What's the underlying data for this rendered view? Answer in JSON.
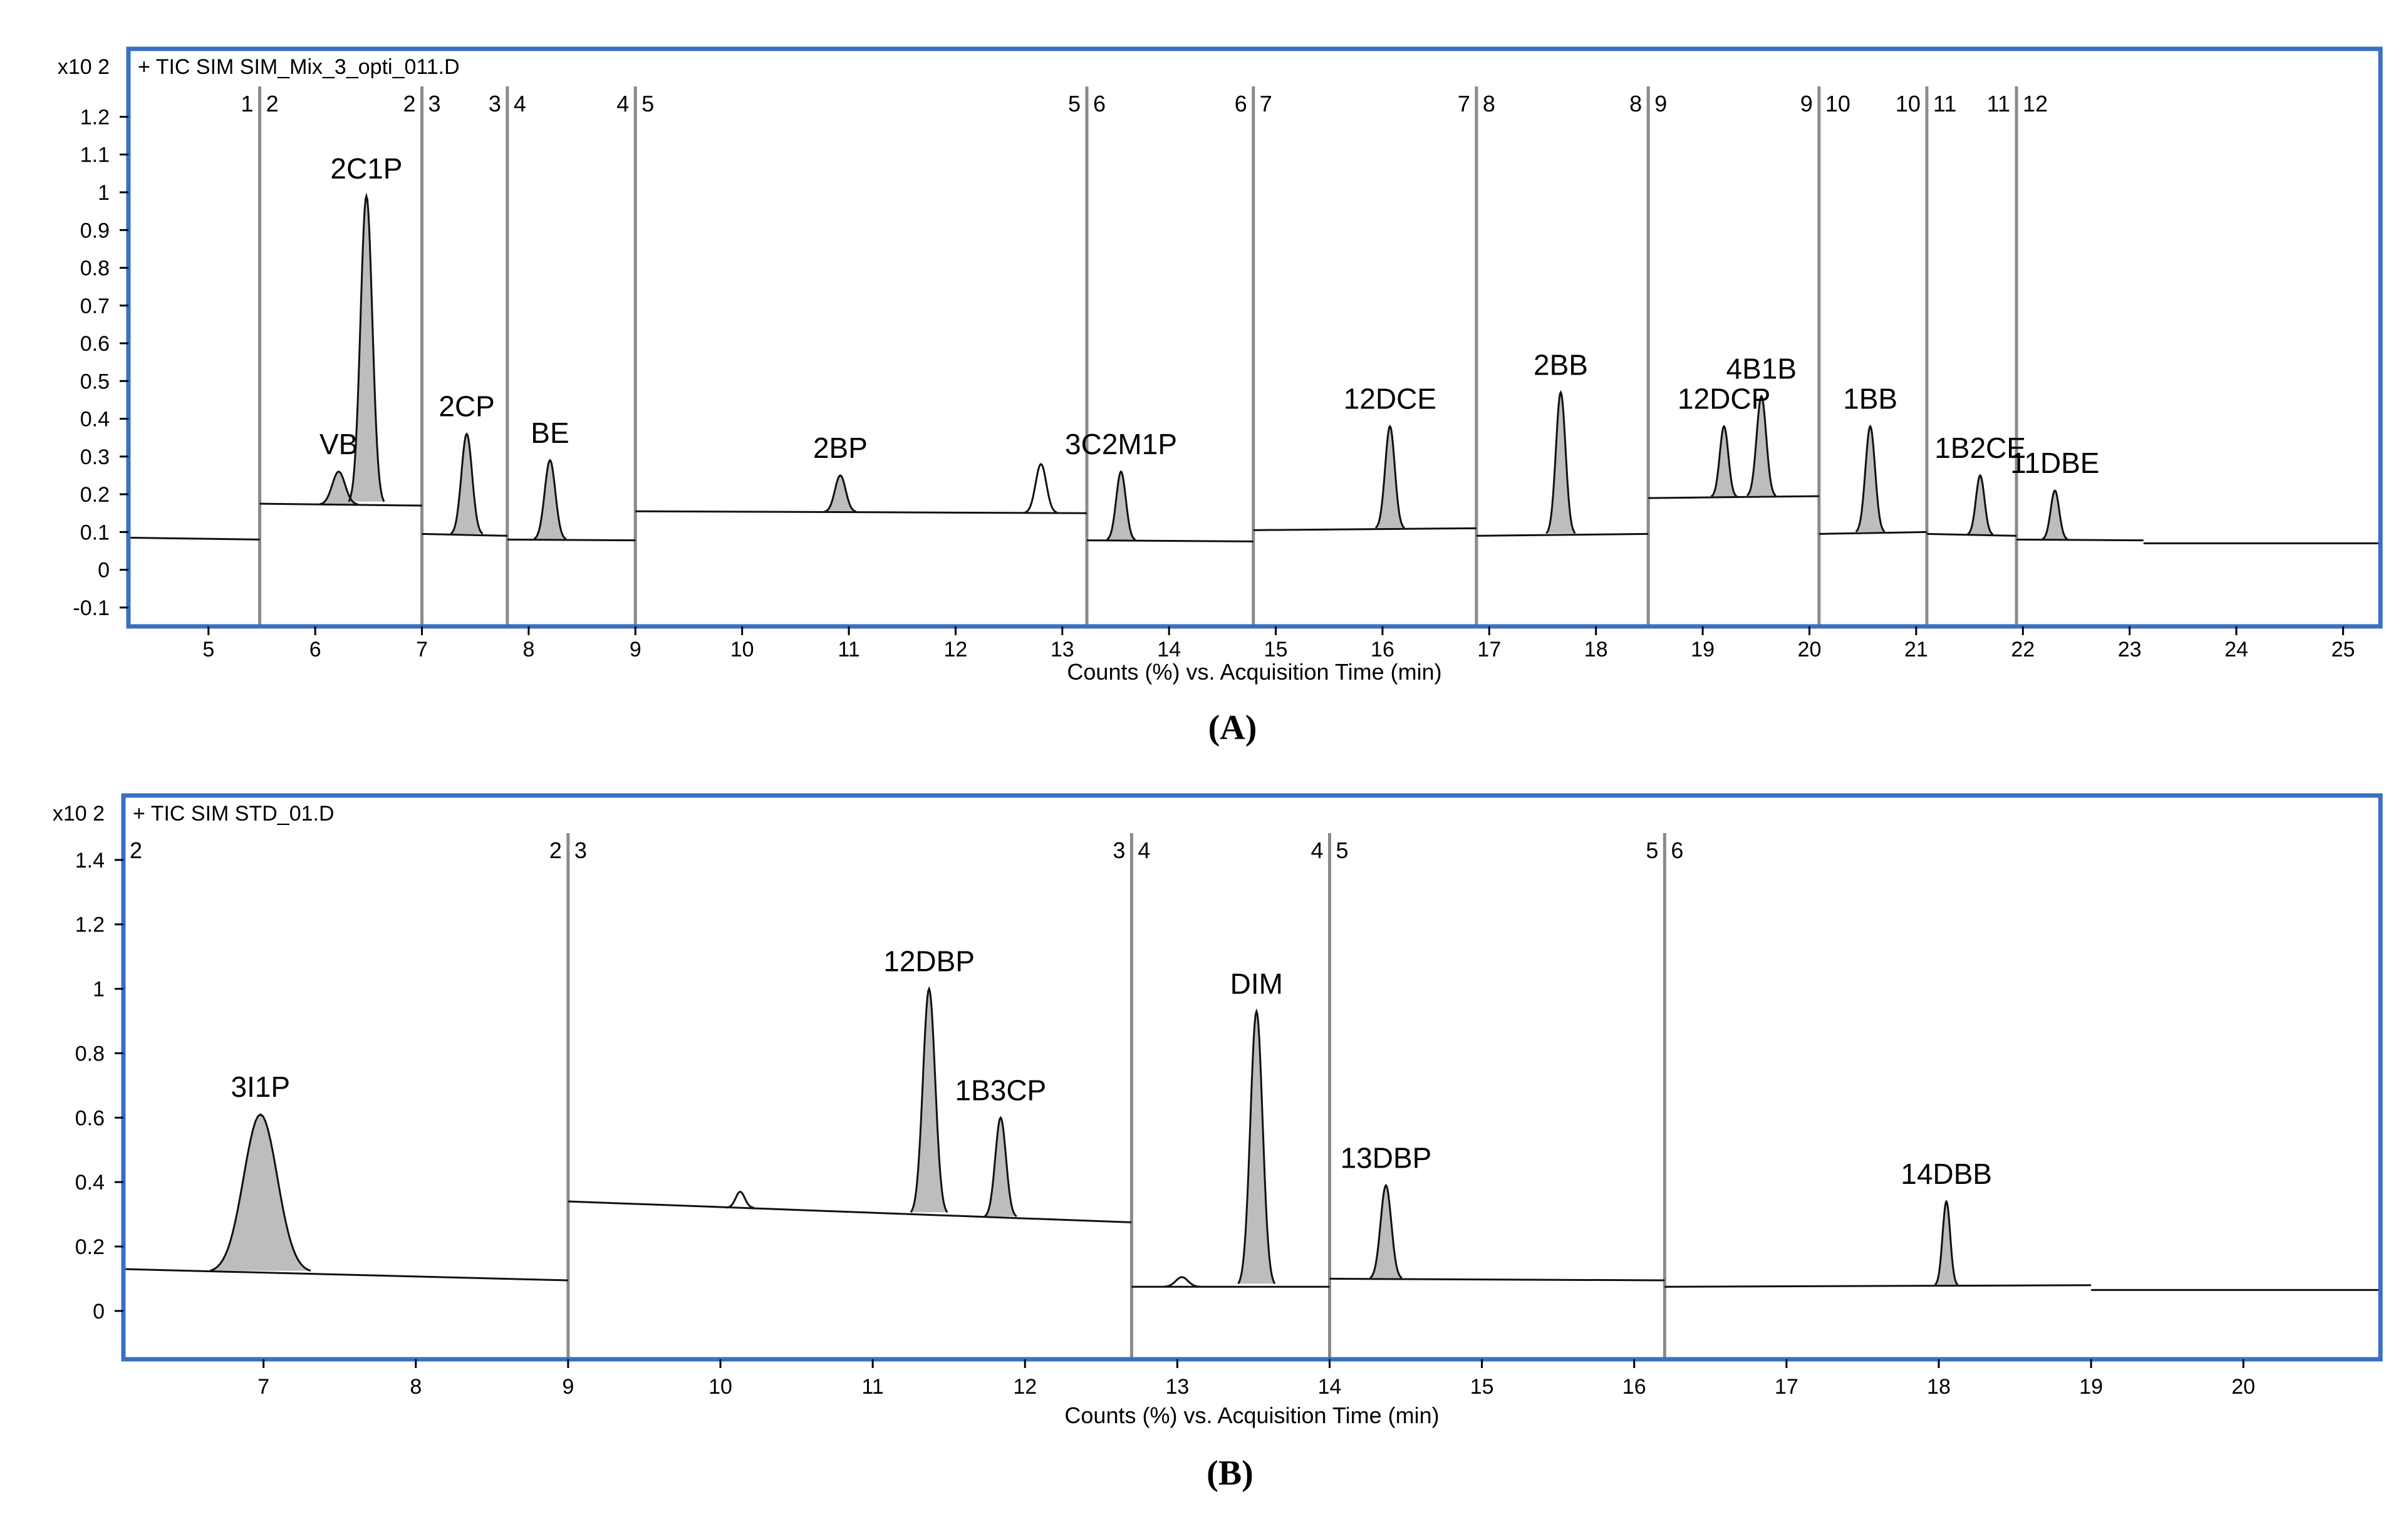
{
  "chart_data": [
    {
      "type": "line",
      "title": "+ TIC SIM SIM_Mix_3_opti_011.D",
      "panel_caption": "(A)",
      "xlabel": "Counts (%) vs. Acquisition Time (min)",
      "ylabel": "x10 2",
      "ylim": [
        -0.15,
        1.38
      ],
      "xlim": [
        4.25,
        25.35
      ],
      "x_ticks": [
        "5",
        "6",
        "7",
        "8",
        "9",
        "10",
        "11",
        "12",
        "13",
        "14",
        "15",
        "16",
        "17",
        "18",
        "19",
        "20",
        "21",
        "22",
        "23",
        "24",
        "25"
      ],
      "y_ticks": [
        "-0.1",
        "0",
        "0.1",
        "0.2",
        "0.3",
        "0.4",
        "0.5",
        "0.6",
        "0.7",
        "0.8",
        "0.9",
        "1",
        "1.1",
        "1.2"
      ],
      "grid": false,
      "segment_boundaries": [
        {
          "x": 5.48,
          "left": "1",
          "right": "2"
        },
        {
          "x": 7.0,
          "left": "2",
          "right": "3"
        },
        {
          "x": 7.8,
          "left": "3",
          "right": "4"
        },
        {
          "x": 9.0,
          "left": "4",
          "right": "5"
        },
        {
          "x": 13.23,
          "left": "5",
          "right": "6"
        },
        {
          "x": 14.79,
          "left": "6",
          "right": "7"
        },
        {
          "x": 16.88,
          "left": "7",
          "right": "8"
        },
        {
          "x": 18.49,
          "left": "8",
          "right": "9"
        },
        {
          "x": 20.09,
          "left": "9",
          "right": "10"
        },
        {
          "x": 21.1,
          "left": "10",
          "right": "11"
        },
        {
          "x": 21.94,
          "left": "11",
          "right": "12"
        }
      ],
      "baselines": [
        {
          "x0": 4.25,
          "x1": 5.48,
          "y0": 0.085,
          "y1": 0.08
        },
        {
          "x0": 5.48,
          "x1": 7.0,
          "y0": 0.175,
          "y1": 0.17
        },
        {
          "x0": 7.0,
          "x1": 7.8,
          "y0": 0.095,
          "y1": 0.09
        },
        {
          "x0": 7.8,
          "x1": 9.0,
          "y0": 0.08,
          "y1": 0.078
        },
        {
          "x0": 9.0,
          "x1": 13.23,
          "y0": 0.155,
          "y1": 0.15
        },
        {
          "x0": 13.23,
          "x1": 14.79,
          "y0": 0.078,
          "y1": 0.075
        },
        {
          "x0": 14.79,
          "x1": 16.88,
          "y0": 0.105,
          "y1": 0.11
        },
        {
          "x0": 16.88,
          "x1": 18.49,
          "y0": 0.09,
          "y1": 0.095
        },
        {
          "x0": 18.49,
          "x1": 20.09,
          "y0": 0.19,
          "y1": 0.195
        },
        {
          "x0": 20.09,
          "x1": 21.1,
          "y0": 0.095,
          "y1": 0.1
        },
        {
          "x0": 21.1,
          "x1": 21.94,
          "y0": 0.095,
          "y1": 0.09
        },
        {
          "x0": 21.94,
          "x1": 23.13,
          "y0": 0.08,
          "y1": 0.078
        },
        {
          "x0": 23.13,
          "x1": 25.35,
          "y0": 0.07,
          "y1": 0.07
        }
      ],
      "peaks": [
        {
          "label": "VB",
          "x": 6.22,
          "height": 0.26,
          "width": 0.06,
          "filled": true
        },
        {
          "label": "2C1P",
          "x": 6.48,
          "height": 0.99,
          "width": 0.055,
          "filled": true
        },
        {
          "label": "2CP",
          "x": 7.42,
          "height": 0.36,
          "width": 0.05,
          "filled": true
        },
        {
          "label": "BE",
          "x": 8.2,
          "height": 0.29,
          "width": 0.05,
          "filled": true
        },
        {
          "label": "2BP",
          "x": 10.92,
          "height": 0.25,
          "width": 0.05,
          "filled": true
        },
        {
          "label": "",
          "x": 12.8,
          "height": 0.28,
          "width": 0.05,
          "filled": false
        },
        {
          "label": "3C2M1P",
          "x": 13.55,
          "height": 0.26,
          "width": 0.045,
          "filled": true
        },
        {
          "label": "12DCE",
          "x": 16.07,
          "height": 0.38,
          "width": 0.045,
          "filled": true
        },
        {
          "label": "2BB",
          "x": 17.67,
          "height": 0.47,
          "width": 0.045,
          "filled": true
        },
        {
          "label": "12DCP",
          "x": 19.2,
          "height": 0.38,
          "width": 0.04,
          "filled": true
        },
        {
          "label": "4B1B",
          "x": 19.55,
          "height": 0.46,
          "width": 0.045,
          "filled": true
        },
        {
          "label": "1BB",
          "x": 20.57,
          "height": 0.38,
          "width": 0.045,
          "filled": true
        },
        {
          "label": "1B2CE",
          "x": 21.6,
          "height": 0.25,
          "width": 0.04,
          "filled": true
        },
        {
          "label": "11DBE",
          "x": 22.3,
          "height": 0.21,
          "width": 0.04,
          "filled": true
        }
      ]
    },
    {
      "type": "line",
      "title": "+ TIC SIM STD_01.D",
      "panel_caption": "(B)",
      "xlabel": "Counts (%) vs. Acquisition Time (min)",
      "ylabel": "x10 2",
      "ylim": [
        -0.15,
        1.6
      ],
      "xlim": [
        6.08,
        20.9
      ],
      "x_ticks": [
        "7",
        "8",
        "9",
        "10",
        "11",
        "12",
        "13",
        "14",
        "15",
        "16",
        "17",
        "18",
        "19",
        "20"
      ],
      "y_ticks": [
        "0",
        "0.2",
        "0.4",
        "0.6",
        "0.8",
        "1",
        "1.2",
        "1.4"
      ],
      "grid": false,
      "segment_boundaries": [
        {
          "x": 6.08,
          "left": "",
          "right": "2"
        },
        {
          "x": 9.0,
          "left": "2",
          "right": "3"
        },
        {
          "x": 12.7,
          "left": "3",
          "right": "4"
        },
        {
          "x": 14.0,
          "left": "4",
          "right": "5"
        },
        {
          "x": 16.2,
          "left": "5",
          "right": "6"
        }
      ],
      "baselines": [
        {
          "x0": 6.08,
          "x1": 9.0,
          "y0": 0.13,
          "y1": 0.095
        },
        {
          "x0": 9.0,
          "x1": 12.7,
          "y0": 0.34,
          "y1": 0.275
        },
        {
          "x0": 12.7,
          "x1": 14.0,
          "y0": 0.075,
          "y1": 0.075
        },
        {
          "x0": 14.0,
          "x1": 16.2,
          "y0": 0.1,
          "y1": 0.095
        },
        {
          "x0": 16.2,
          "x1": 19.0,
          "y0": 0.075,
          "y1": 0.08
        },
        {
          "x0": 19.0,
          "x1": 20.9,
          "y0": 0.065,
          "y1": 0.065
        }
      ],
      "peaks": [
        {
          "label": "3I1P",
          "x": 6.98,
          "height": 0.61,
          "width": 0.11,
          "filled": true
        },
        {
          "label": "",
          "x": 10.13,
          "height": 0.37,
          "width": 0.03,
          "filled": false
        },
        {
          "label": "12DBP",
          "x": 11.37,
          "height": 1.0,
          "width": 0.04,
          "filled": true
        },
        {
          "label": "1B3CP",
          "x": 11.84,
          "height": 0.6,
          "width": 0.035,
          "filled": true
        },
        {
          "label": "",
          "x": 13.03,
          "height": 0.105,
          "width": 0.04,
          "filled": false
        },
        {
          "label": "DIM",
          "x": 13.52,
          "height": 0.93,
          "width": 0.04,
          "filled": true
        },
        {
          "label": "13DBP",
          "x": 14.37,
          "height": 0.39,
          "width": 0.035,
          "filled": true
        },
        {
          "label": "14DBB",
          "x": 18.05,
          "height": 0.34,
          "width": 0.025,
          "filled": true
        }
      ]
    }
  ],
  "style": {
    "frame_color": "#3a6fc4",
    "trace_color": "#111111",
    "fill_color": "#bdbdbd",
    "divider_color": "#8a8a8a",
    "text_color": "#000000"
  }
}
